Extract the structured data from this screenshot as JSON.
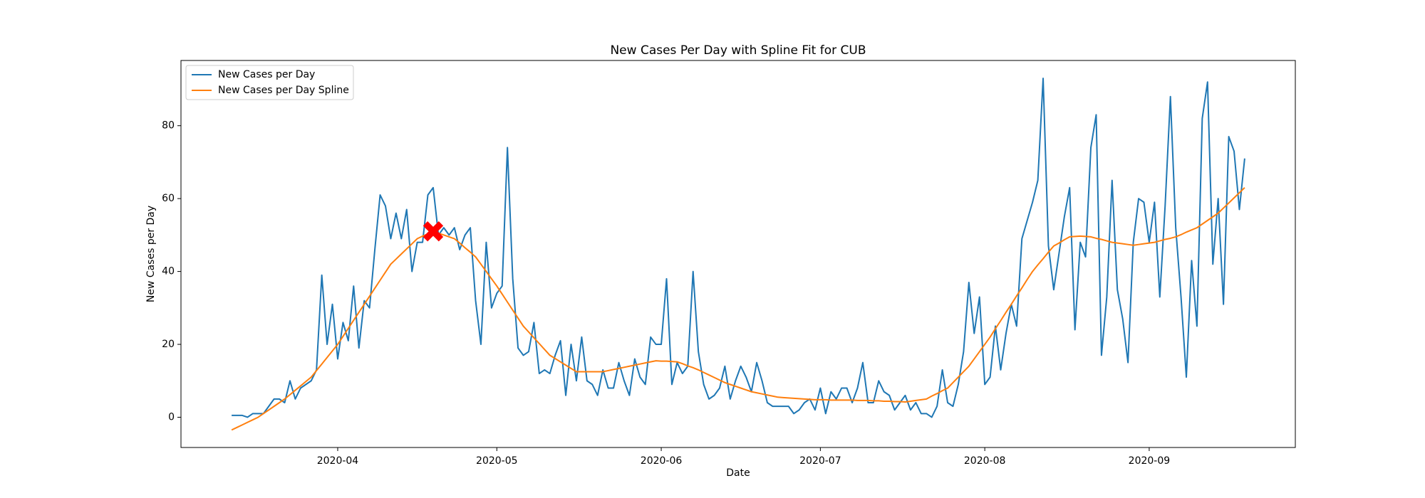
{
  "chart_data": {
    "type": "line",
    "title": "New Cases Per Day with Spline Fit for CUB",
    "x_label": "Date",
    "y_label": "New Cases per Day",
    "categories": [
      null,
      null,
      null,
      null,
      null,
      null,
      null,
      null,
      null,
      null,
      null,
      null,
      null,
      null,
      null,
      null,
      null,
      null,
      null,
      null,
      "2020-04",
      null,
      null,
      null,
      null,
      null,
      null,
      null,
      null,
      null,
      null,
      null,
      null,
      null,
      null,
      null,
      null,
      null,
      null,
      null,
      null,
      null,
      null,
      null,
      null,
      null,
      null,
      null,
      null,
      null,
      "2020-05",
      null,
      null,
      null,
      null,
      null,
      null,
      null,
      null,
      null,
      null,
      null,
      null,
      null,
      null,
      null,
      null,
      null,
      null,
      null,
      null,
      null,
      null,
      null,
      null,
      null,
      null,
      null,
      null,
      null,
      null,
      "2020-06",
      null,
      null,
      null,
      null,
      null,
      null,
      null,
      null,
      null,
      null,
      null,
      null,
      null,
      null,
      null,
      null,
      null,
      null,
      null,
      null,
      null,
      null,
      null,
      null,
      null,
      null,
      null,
      null,
      null,
      "2020-07",
      null,
      null,
      null,
      null,
      null,
      null,
      null,
      null,
      null,
      null,
      null,
      null,
      null,
      null,
      null,
      null,
      null,
      null,
      null,
      null,
      null,
      null,
      null,
      null,
      null,
      null,
      null,
      null,
      null,
      null,
      "2020-08",
      null,
      null,
      null,
      null,
      null,
      null,
      null,
      null,
      null,
      null,
      null,
      null,
      null,
      null,
      null,
      null,
      null,
      null,
      null,
      null,
      null,
      null,
      null,
      null,
      null,
      null,
      null,
      null,
      null,
      null,
      "2020-09",
      null,
      null,
      null,
      null,
      null,
      null,
      null,
      null,
      null,
      null,
      null,
      null,
      null,
      null,
      null,
      null,
      null,
      null
    ],
    "series": [
      {
        "name": "New Cases per Day",
        "color": "#1f77b4",
        "values": [
          0.5,
          0.5,
          0.5,
          0,
          1,
          1,
          1,
          3,
          5,
          5,
          4,
          10,
          5,
          8,
          9,
          10,
          13,
          39,
          20,
          31,
          16,
          26,
          21,
          36,
          19,
          32,
          30,
          46,
          61,
          58,
          49,
          56,
          49,
          57,
          40,
          48,
          48,
          61,
          63,
          50,
          52,
          50,
          52,
          46,
          50,
          52,
          32,
          20,
          48,
          30,
          34,
          36,
          74,
          38,
          19,
          17,
          18,
          26,
          12,
          13,
          12,
          17,
          21,
          6,
          20,
          10,
          22,
          10,
          9,
          6,
          13,
          8,
          8,
          15,
          10,
          6,
          16,
          11,
          9,
          22,
          20,
          20,
          38,
          9,
          15,
          12,
          14,
          40,
          18,
          9,
          5,
          6,
          8,
          14,
          5,
          10,
          14,
          11,
          7,
          15,
          10,
          4,
          3,
          3,
          3,
          3,
          1,
          2,
          4,
          5,
          2,
          8,
          1,
          7,
          5,
          8,
          8,
          4,
          8,
          15,
          4,
          4,
          10,
          7,
          6,
          2,
          4,
          6,
          2,
          4,
          1,
          1,
          0,
          3,
          13,
          4,
          3,
          9,
          18,
          37,
          23,
          33,
          9,
          11,
          25,
          13,
          23,
          31,
          25,
          49,
          54,
          59,
          65,
          93,
          47,
          35,
          45,
          55,
          63,
          24,
          48,
          44,
          74,
          83,
          17,
          33,
          65,
          35,
          27,
          15,
          48,
          60,
          59,
          48,
          59,
          33,
          58,
          88,
          52,
          33,
          11,
          43,
          25,
          82,
          92,
          42,
          60,
          31,
          77,
          73,
          57,
          71
        ]
      },
      {
        "name": "New Cases per Day Spline",
        "color": "#ff7f0e",
        "values": [
          -3.5,
          -2.8,
          -2.1,
          -1.4,
          -0.7,
          0,
          1,
          2,
          3,
          4,
          5,
          6.2,
          7.4,
          8.6,
          9.8,
          11,
          12.8,
          14.6,
          16.4,
          18.2,
          20,
          22.2,
          24.4,
          26.6,
          28.8,
          31,
          33.2,
          35.4,
          37.6,
          39.8,
          42,
          43.4,
          44.8,
          46.2,
          47.6,
          49,
          49.7,
          50.3,
          51,
          50.5,
          50,
          49.5,
          49,
          47.8,
          46.5,
          45.3,
          44,
          42,
          40,
          38,
          36,
          33.8,
          31.6,
          29.4,
          27.2,
          25,
          23.4,
          21.8,
          20.2,
          18.6,
          17,
          16.1,
          15.2,
          14.3,
          13.4,
          12.5,
          12.5,
          12.5,
          12.5,
          12.5,
          12.5,
          12.8,
          13.1,
          13.4,
          13.7,
          14,
          14.3,
          14.6,
          14.9,
          15.2,
          15.5,
          15.4,
          15.4,
          15.3,
          15.2,
          14.7,
          14.1,
          13.6,
          13,
          12.3,
          11.6,
          10.9,
          10.2,
          9.5,
          9,
          8.5,
          8,
          7.5,
          7,
          6.7,
          6.4,
          6.1,
          5.8,
          5.5,
          5.4,
          5.3,
          5.2,
          5.1,
          5,
          4.9,
          4.8,
          4.8,
          4.8,
          4.7,
          4.7,
          4.7,
          4.7,
          4.7,
          4.6,
          4.6,
          4.6,
          4.5,
          4.5,
          4.4,
          4.4,
          4.3,
          4.3,
          4.2,
          4.4,
          4.6,
          4.8,
          5,
          5.8,
          6.5,
          7.3,
          8,
          9.5,
          11,
          12.5,
          14,
          16,
          18,
          20,
          22,
          24.3,
          26.5,
          28.8,
          31,
          33.3,
          35.5,
          37.8,
          40,
          41.8,
          43.5,
          45.3,
          47,
          47.8,
          48.7,
          49.5,
          49.6,
          49.7,
          49.6,
          49.5,
          49.1,
          48.8,
          48.4,
          48,
          47.8,
          47.6,
          47.4,
          47.2,
          47.4,
          47.6,
          47.8,
          48,
          48.4,
          48.8,
          49.1,
          49.5,
          50.1,
          50.8,
          51.4,
          52,
          53,
          54,
          55,
          56,
          57.4,
          58.8,
          60.2,
          61.6,
          63
        ]
      }
    ],
    "highlight": {
      "category_index": 38,
      "value": 51,
      "color": "#ff0000"
    },
    "ylim": [
      -8.3,
      97.9
    ],
    "yticks": [
      0,
      20,
      40,
      60,
      80
    ],
    "legend": "upper left",
    "grid": false
  }
}
